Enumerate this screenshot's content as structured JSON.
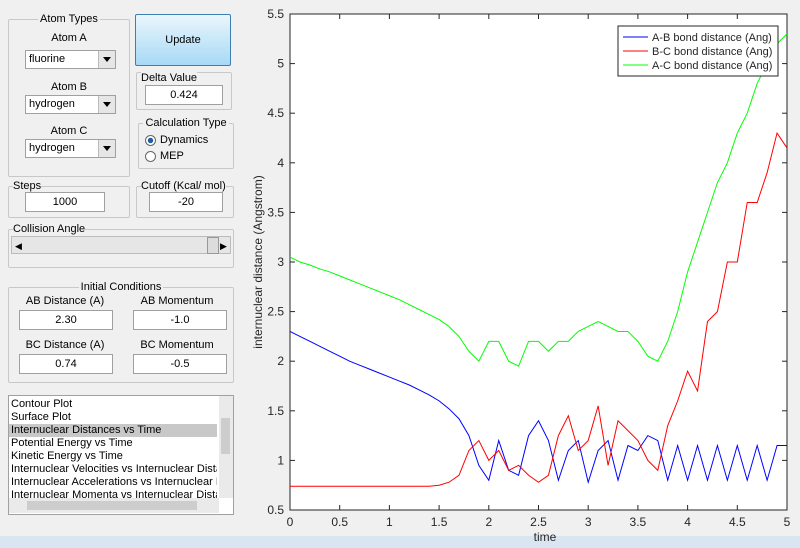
{
  "panel": {
    "atom_types": {
      "title": "Atom Types",
      "atom_a_label": "Atom A",
      "atom_a": "fluorine",
      "atom_b_label": "Atom B",
      "atom_b": "hydrogen",
      "atom_c_label": "Atom C",
      "atom_c": "hydrogen"
    },
    "update_button": "Update",
    "delta_value": {
      "title": "Delta Value",
      "value": "0.424"
    },
    "calculation_type": {
      "title": "Calculation Type",
      "options": [
        "Dynamics",
        "MEP"
      ],
      "selected": 0
    },
    "steps": {
      "title": "Steps",
      "value": "1000"
    },
    "cutoff": {
      "title": "Cutoff (Kcal/ mol)",
      "value": "-20"
    },
    "collision_angle": {
      "title": "Collision Angle"
    },
    "initial_conditions": {
      "title": "Initial Conditions",
      "ab_distance_label": "AB Distance (A)",
      "ab_distance": "2.30",
      "ab_momentum_label": "AB Momentum",
      "ab_momentum": "-1.0",
      "bc_distance_label": "BC Distance (A)",
      "bc_distance": "0.74",
      "bc_momentum_label": "BC Momentum",
      "bc_momentum": "-0.5"
    },
    "plot_list": {
      "items": [
        "Contour Plot",
        "Surface Plot",
        "Internuclear Distances vs Time",
        "Potential Energy vs Time",
        "Kinetic Energy vs Time",
        "Internuclear Velocities vs Internuclear Distance",
        "Internuclear Accelerations vs Internuclear Dista",
        "Internuclear Momenta vs Internuclear Distance"
      ],
      "selected": 2
    }
  },
  "chart_data": {
    "type": "line",
    "xlabel": "time",
    "ylabel": "internuclear distance (Angstrom)",
    "x": [
      0,
      0.1,
      0.2,
      0.3,
      0.4,
      0.5,
      0.6,
      0.7,
      0.8,
      0.9,
      1.0,
      1.1,
      1.2,
      1.3,
      1.4,
      1.5,
      1.6,
      1.7,
      1.8,
      1.9,
      2.0,
      2.1,
      2.2,
      2.3,
      2.4,
      2.5,
      2.6,
      2.7,
      2.8,
      2.9,
      3.0,
      3.1,
      3.2,
      3.3,
      3.4,
      3.5,
      3.6,
      3.7,
      3.8,
      3.9,
      4.0,
      4.1,
      4.2,
      4.3,
      4.4,
      4.5,
      4.6,
      4.7,
      4.8,
      4.9,
      5.0
    ],
    "series": [
      {
        "name": "A-B bond distance (Ang)",
        "color": "#0000ff",
        "values": [
          2.3,
          2.25,
          2.2,
          2.15,
          2.1,
          2.05,
          2.0,
          1.96,
          1.92,
          1.88,
          1.84,
          1.8,
          1.76,
          1.71,
          1.66,
          1.6,
          1.52,
          1.42,
          1.25,
          0.95,
          0.8,
          1.2,
          0.9,
          0.85,
          1.25,
          1.4,
          1.2,
          0.8,
          1.1,
          1.2,
          0.78,
          1.1,
          1.2,
          0.8,
          1.15,
          1.1,
          1.25,
          1.2,
          0.8,
          1.15,
          0.8,
          1.15,
          0.8,
          1.15,
          0.8,
          1.15,
          0.8,
          1.15,
          0.8,
          1.15,
          1.15
        ]
      },
      {
        "name": "B-C bond distance (Ang)",
        "color": "#ff0000",
        "values": [
          0.74,
          0.74,
          0.74,
          0.74,
          0.74,
          0.74,
          0.74,
          0.74,
          0.74,
          0.74,
          0.74,
          0.74,
          0.74,
          0.74,
          0.74,
          0.75,
          0.78,
          0.85,
          1.1,
          1.2,
          1.0,
          1.1,
          0.9,
          0.95,
          0.85,
          0.78,
          0.85,
          1.25,
          1.45,
          1.1,
          1.2,
          1.55,
          0.95,
          1.4,
          1.3,
          1.2,
          1.0,
          0.9,
          1.35,
          1.6,
          1.9,
          1.7,
          2.4,
          2.5,
          3.0,
          3.0,
          3.6,
          3.6,
          3.9,
          4.3,
          4.15
        ]
      },
      {
        "name": "A-C bond distance (Ang)",
        "color": "#00ff00",
        "values": [
          3.05,
          3.0,
          2.97,
          2.93,
          2.9,
          2.86,
          2.82,
          2.78,
          2.74,
          2.7,
          2.66,
          2.62,
          2.57,
          2.52,
          2.47,
          2.42,
          2.35,
          2.25,
          2.1,
          2.0,
          2.2,
          2.2,
          2.0,
          1.95,
          2.2,
          2.2,
          2.1,
          2.2,
          2.2,
          2.3,
          2.35,
          2.4,
          2.35,
          2.3,
          2.3,
          2.2,
          2.05,
          2.0,
          2.2,
          2.5,
          2.9,
          3.2,
          3.5,
          3.8,
          4.0,
          4.3,
          4.5,
          4.8,
          5.0,
          5.2,
          5.3
        ]
      }
    ],
    "xlim": [
      0,
      5
    ],
    "ylim": [
      0.5,
      5.5
    ],
    "xticks": [
      0,
      0.5,
      1,
      1.5,
      2,
      2.5,
      3,
      3.5,
      4,
      4.5,
      5
    ],
    "yticks": [
      0.5,
      1,
      1.5,
      2,
      2.5,
      3,
      3.5,
      4,
      4.5,
      5,
      5.5
    ],
    "legend": "upper right"
  }
}
